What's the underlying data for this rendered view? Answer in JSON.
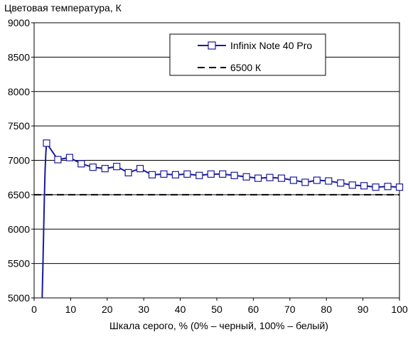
{
  "chart_data": {
    "type": "line",
    "title": "Цветовая температура, К",
    "xlabel": "Шкала серого, % (0% – черный, 100% – белый)",
    "ylabel": "",
    "xlim": [
      0,
      100
    ],
    "ylim": [
      5000,
      9000
    ],
    "x_ticks": [
      0,
      10,
      20,
      30,
      40,
      50,
      60,
      70,
      80,
      90,
      100
    ],
    "y_ticks": [
      5000,
      5500,
      6000,
      6500,
      7000,
      7500,
      8000,
      8500,
      9000
    ],
    "grid": "horizontal",
    "legend_position": "top-right",
    "series": [
      {
        "name": "Infinix Note 40 Pro",
        "color": "#1a1a9c",
        "marker": "square",
        "line_style": "solid",
        "x": [
          2.2,
          2.4,
          2.6,
          2.8,
          3.0,
          3.2,
          3.4,
          6.5,
          9.7,
          12.9,
          16.1,
          19.4,
          22.6,
          25.8,
          29.0,
          32.3,
          35.5,
          38.7,
          41.9,
          45.2,
          48.4,
          51.6,
          54.8,
          58.1,
          61.3,
          64.5,
          67.7,
          71.0,
          74.2,
          77.4,
          80.6,
          83.9,
          87.1,
          90.3,
          93.5,
          96.8,
          100.0
        ],
        "y": [
          5000,
          5450,
          5950,
          6450,
          6850,
          7100,
          7250,
          7010,
          7040,
          6950,
          6900,
          6880,
          6910,
          6820,
          6880,
          6790,
          6800,
          6790,
          6800,
          6780,
          6800,
          6800,
          6780,
          6760,
          6740,
          6750,
          6740,
          6710,
          6680,
          6710,
          6700,
          6670,
          6640,
          6630,
          6610,
          6620,
          6610
        ]
      },
      {
        "name": "6500 К",
        "color": "#000000",
        "marker": "none",
        "line_style": "dashed",
        "x": [
          0,
          100
        ],
        "y": [
          6500,
          6500
        ]
      }
    ]
  }
}
